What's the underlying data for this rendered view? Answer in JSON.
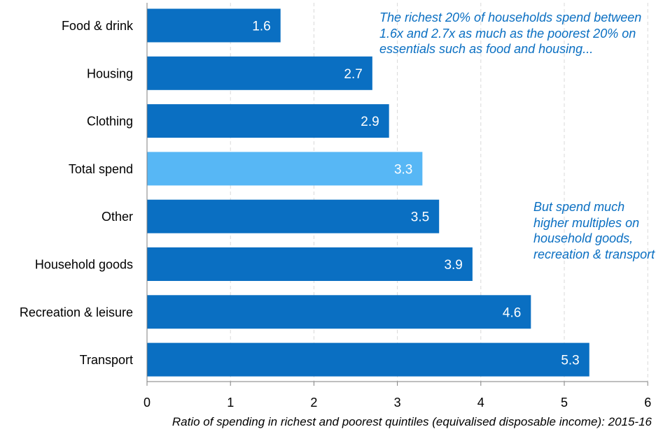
{
  "chart_data": {
    "type": "bar",
    "orientation": "horizontal",
    "categories": [
      "Food & drink",
      "Housing",
      "Clothing",
      "Total spend",
      "Other",
      "Household goods",
      "Recreation & leisure",
      "Transport"
    ],
    "values": [
      1.6,
      2.7,
      2.9,
      3.3,
      3.5,
      3.9,
      4.6,
      5.3
    ],
    "value_labels": [
      "1.6",
      "2.7",
      "2.9",
      "3.3",
      "3.5",
      "3.9",
      "4.6",
      "5.3"
    ],
    "xlim": [
      0,
      6
    ],
    "xticks": [
      "0",
      "1",
      "2",
      "3",
      "4",
      "5",
      "6"
    ],
    "xlabel": "Ratio of spending in richest and poorest quintiles (equivalised disposable income): 2015-16",
    "grid": "vertical dashed",
    "colors": {
      "bar": "#0a6fc2",
      "highlight": "#57b7f5",
      "annotation": "#0a6fc2",
      "grid": "#d9d9d9"
    },
    "highlight_category": "Total spend",
    "annotations": [
      "The richest 20% of households spend between 1.6x and 2.7x as much as the poorest 20% on essentials such as food and housing...",
      "But spend much higher multiples on household goods, recreation & transport"
    ]
  }
}
